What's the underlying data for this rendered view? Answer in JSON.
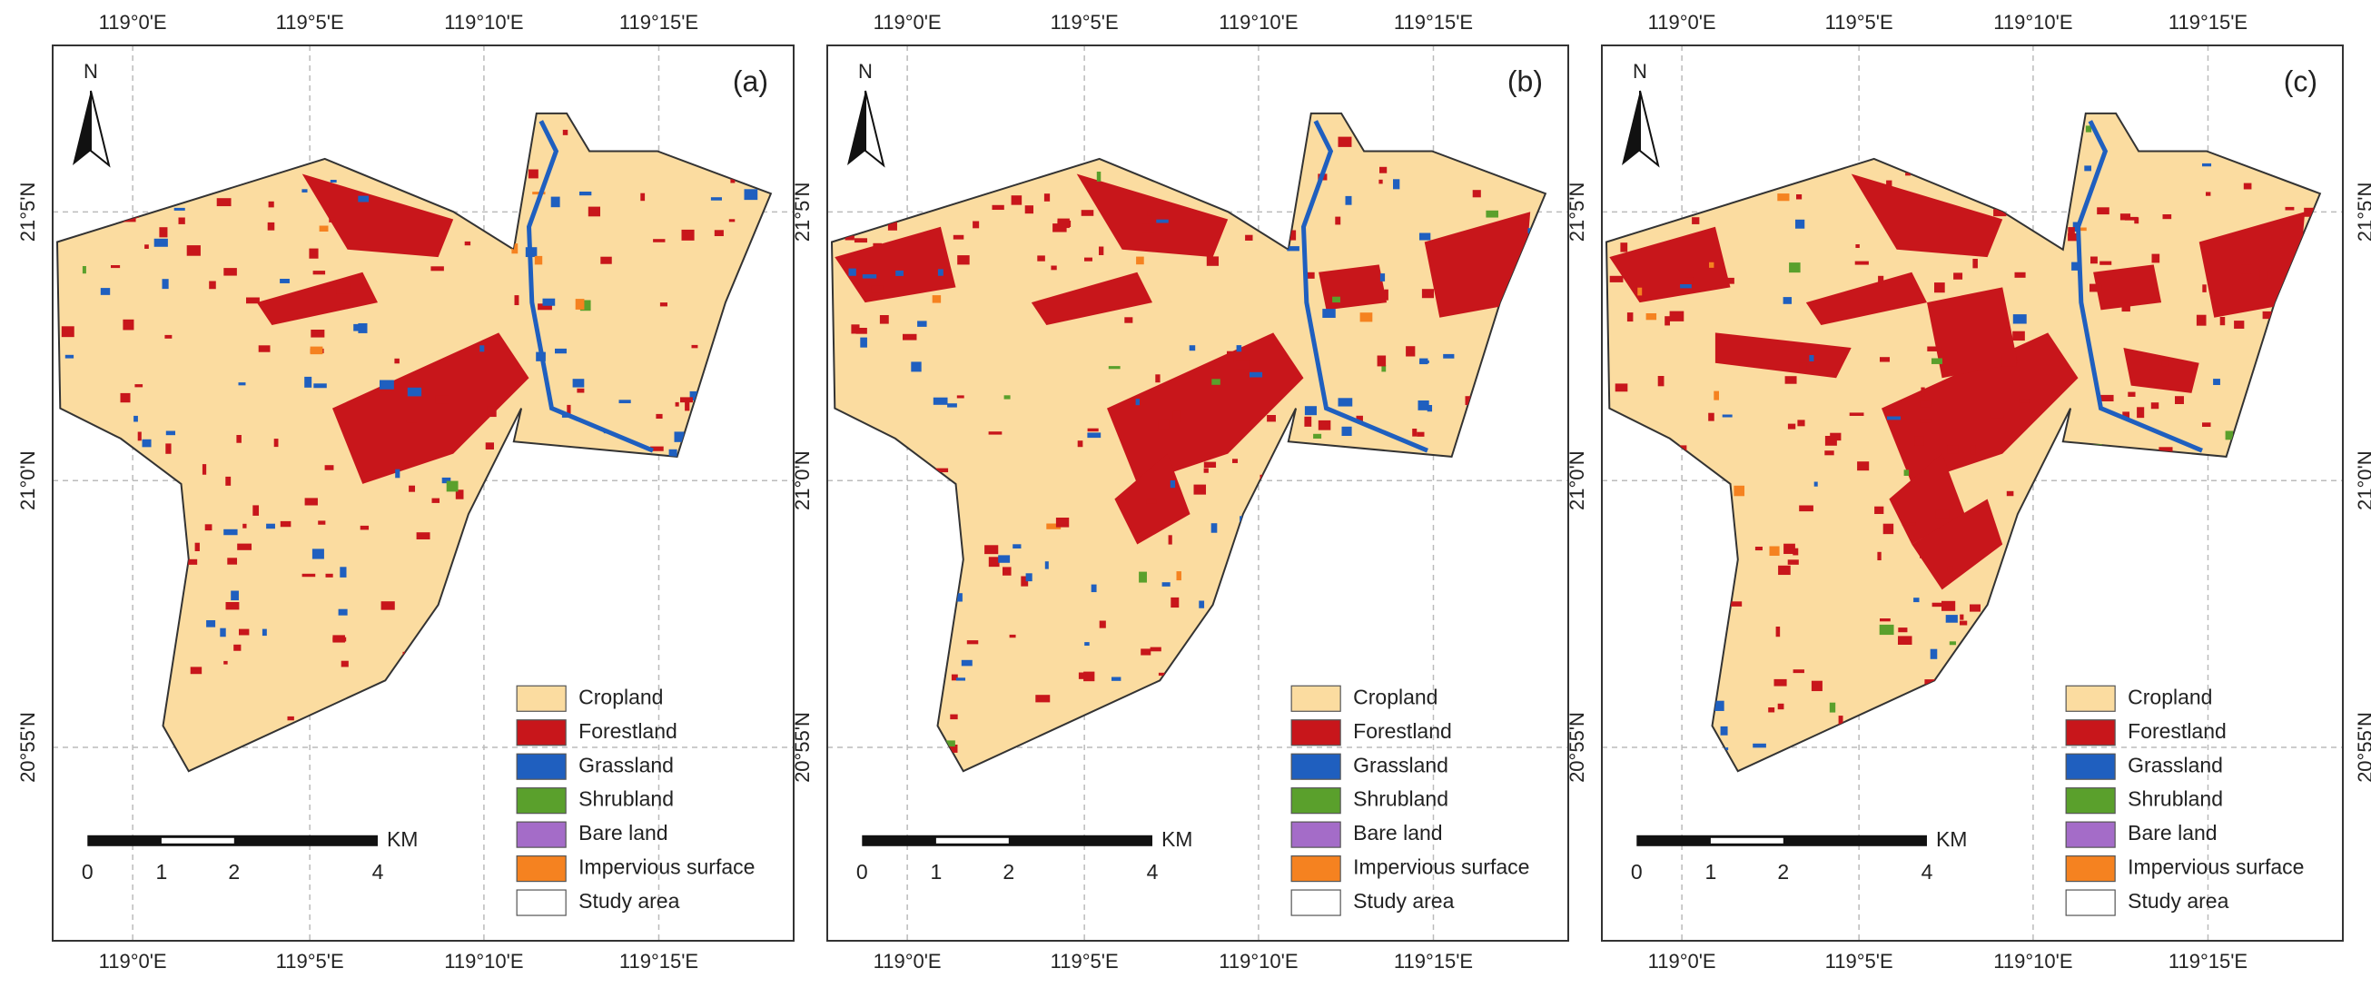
{
  "panels": [
    {
      "label": "(a)"
    },
    {
      "label": "(b)"
    },
    {
      "label": "(c)"
    }
  ],
  "lon_labels": [
    "119°0'E",
    "119°5'E",
    "119°10'E",
    "119°15'E"
  ],
  "lat_labels": [
    "21°5'N",
    "21°0'N",
    "20°55'N"
  ],
  "north": "N",
  "legend": [
    {
      "name": "Cropland",
      "color": "#fbdca0"
    },
    {
      "name": "Forestland",
      "color": "#c8161b"
    },
    {
      "name": "Grassland",
      "color": "#1f5fbf"
    },
    {
      "name": "Shrubland",
      "color": "#5aa02c"
    },
    {
      "name": "Bare land",
      "color": "#a46cc8"
    },
    {
      "name": "Impervious surface",
      "color": "#f58220"
    },
    {
      "name": "Study area",
      "color": "#ffffff"
    }
  ],
  "scale_bar": {
    "labels": [
      "0",
      "1",
      "2",
      "4"
    ],
    "unit": "KM"
  }
}
